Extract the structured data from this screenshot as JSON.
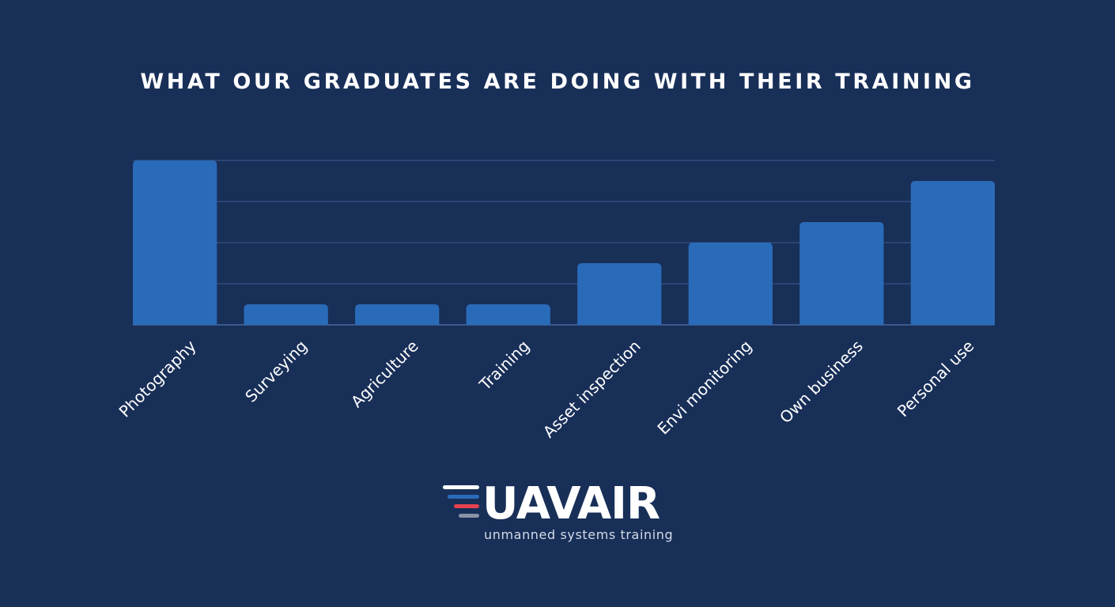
{
  "colors": {
    "background": "#182f58",
    "bar": "#2a6bb9",
    "gridline": "#3c5a8e",
    "text": "#ffffff",
    "logo_stripe_1": "#ffffff",
    "logo_stripe_2": "#2a6bb9",
    "logo_stripe_3": "#e8414f",
    "logo_stripe_4": "#8a93a6"
  },
  "chart_data": {
    "type": "bar",
    "title": "WHAT OUR GRADUATES ARE DOING WITH THEIR TRAINING",
    "categories": [
      "Photography",
      "Surveying",
      "Agriculture",
      "Training",
      "Asset inspection",
      "Envi monitoring",
      "Own business",
      "Personal use"
    ],
    "values": [
      8,
      1,
      1,
      1,
      3,
      4,
      5,
      7
    ],
    "ylim": [
      0,
      8
    ],
    "grid": true,
    "legend": "none"
  },
  "logo": {
    "wordmark": "UAVAIR",
    "tagline": "unmanned systems training"
  }
}
